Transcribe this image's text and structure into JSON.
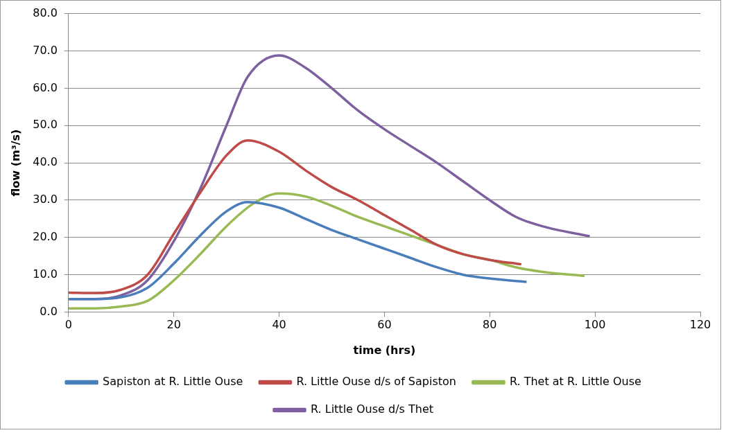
{
  "chart_data": {
    "type": "line",
    "xlabel": "time (hrs)",
    "ylabel": "flow (m³/s)",
    "xlim": [
      0,
      120
    ],
    "xticks": [
      0,
      20,
      40,
      60,
      80,
      100,
      120
    ],
    "ylim": [
      0,
      80
    ],
    "yticks": [
      {
        "value": 0,
        "label": "0.0"
      },
      {
        "value": 10,
        "label": "10.0"
      },
      {
        "value": 20,
        "label": "20.0"
      },
      {
        "value": 30,
        "label": "30.0"
      },
      {
        "value": 40,
        "label": "40.0"
      },
      {
        "value": 50,
        "label": "50.0"
      },
      {
        "value": 60,
        "label": "60.0"
      },
      {
        "value": 70,
        "label": "70.0"
      },
      {
        "value": 80,
        "label": "80.0"
      }
    ],
    "grid": "y",
    "legend": "bottom",
    "marker": "none",
    "line_style": "solid",
    "series": [
      {
        "name": "Sapiston at R. Little Ouse",
        "color": "#4a7ebb",
        "x": [
          0,
          5,
          10,
          15,
          20,
          25,
          30,
          34,
          40,
          45,
          50,
          55,
          60,
          65,
          70,
          75,
          80,
          87
        ],
        "values": [
          3.5,
          3.5,
          4,
          6.5,
          13,
          20.5,
          27,
          29.5,
          28,
          25,
          22,
          19.5,
          17,
          14.5,
          12,
          10,
          9,
          8.1
        ]
      },
      {
        "name": "R. Little Ouse d/s of Sapiston",
        "color": "#be4b48",
        "x": [
          0,
          5,
          10,
          15,
          20,
          25,
          30,
          34,
          40,
          45,
          50,
          55,
          60,
          65,
          70,
          75,
          80,
          86
        ],
        "values": [
          5.2,
          5.1,
          6,
          10,
          21,
          32,
          42,
          46,
          43,
          38,
          33.5,
          30,
          26,
          22,
          18,
          15.5,
          14,
          12.8
        ]
      },
      {
        "name": "R. Thet at R. Little Ouse",
        "color": "#98b954",
        "x": [
          0,
          5,
          10,
          15,
          20,
          25,
          30,
          35,
          40,
          45,
          50,
          55,
          60,
          65,
          70,
          75,
          80,
          85,
          90,
          98
        ],
        "values": [
          1,
          1,
          1.5,
          3,
          8.5,
          15.5,
          23,
          29,
          31.8,
          31,
          28.5,
          25.5,
          23,
          20.5,
          18,
          15.5,
          14,
          12,
          10.8,
          9.7
        ]
      },
      {
        "name": "R. Little Ouse d/s Thet",
        "color": "#7d60a0",
        "x": [
          0,
          5,
          10,
          15,
          20,
          25,
          30,
          34,
          40,
          45,
          50,
          55,
          60,
          65,
          70,
          75,
          80,
          85,
          90,
          99
        ],
        "values": [
          3.5,
          3.5,
          4.5,
          8.5,
          19,
          33,
          50,
          63,
          68.8,
          65.5,
          60,
          54,
          49,
          44.5,
          40,
          35,
          30,
          25.5,
          23,
          20.3
        ]
      }
    ]
  }
}
